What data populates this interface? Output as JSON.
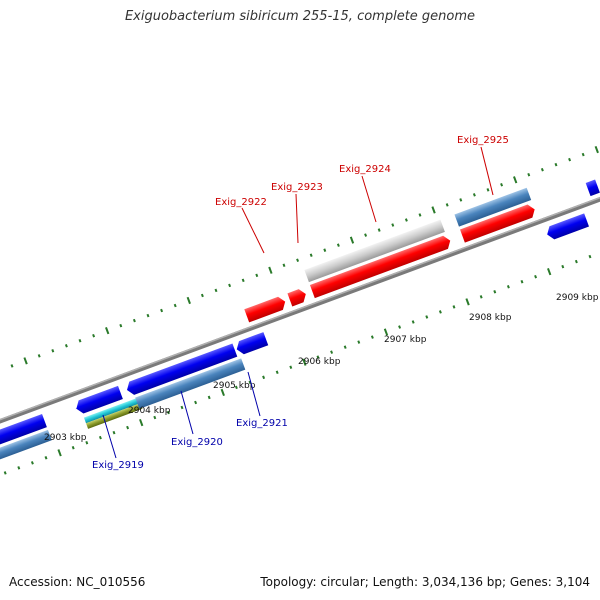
{
  "title": "Exiguobacterium sibiricum 255-15, complete genome",
  "footer": {
    "accession": "Accession: NC_010556",
    "topology": "Topology: circular; Length: 3,034,136 bp; Genes: 3,104"
  },
  "colors": {
    "forward_label": "#cc0000",
    "reverse_label": "#0000aa",
    "tick": "#2a7a2a",
    "backbone": "#777777"
  },
  "scale": {
    "labels": [
      "2903 kbp",
      "2904 kbp",
      "2905 kbp",
      "2906 kbp",
      "2907 kbp",
      "2908 kbp",
      "2909 kbp"
    ]
  },
  "genes": {
    "forward": [
      "Exig_2922",
      "Exig_2923",
      "Exig_2924",
      "Exig_2925"
    ],
    "reverse": [
      "Exig_2919",
      "Exig_2920",
      "Exig_2921"
    ]
  }
}
